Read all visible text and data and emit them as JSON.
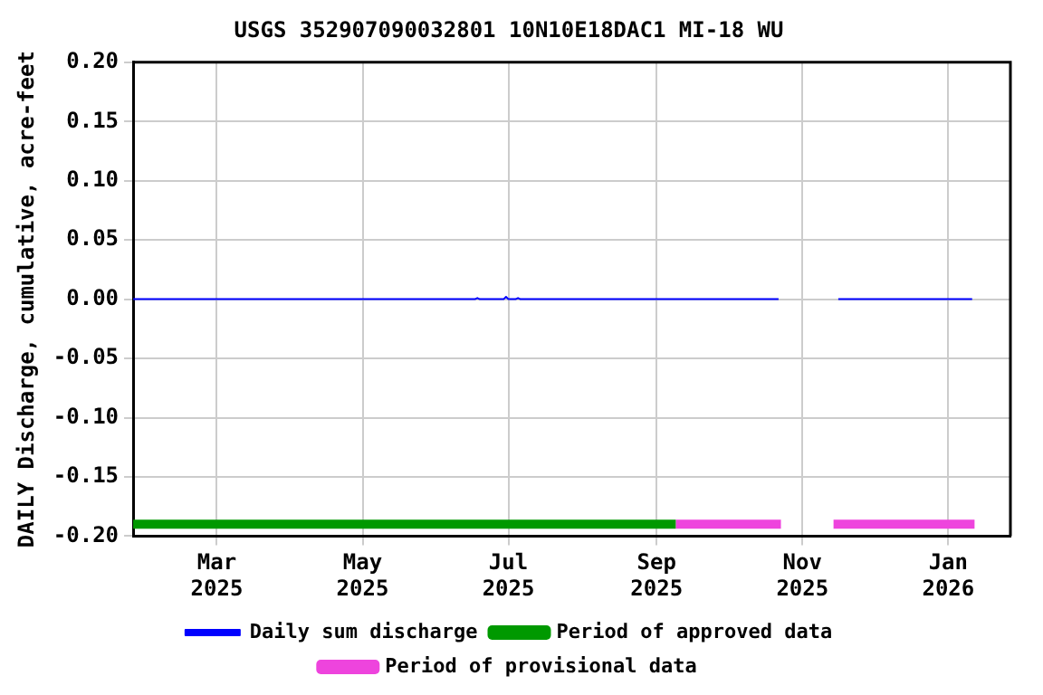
{
  "chart_data": {
    "type": "line",
    "title": "USGS 352907090032801 10N10E18DAC1 MI-18 WU",
    "ylabel": "DAILY Discharge, cumulative, acre-feet",
    "x": [
      "2025-01-25",
      "2025-06-17",
      "2025-06-18",
      "2025-06-19",
      "2025-06-29",
      "2025-06-30",
      "2025-07-01",
      "2025-07-04",
      "2025-07-05",
      "2025-07-06",
      "2025-10-22",
      "2025-11-01",
      "2025-11-16",
      "2026-01-11"
    ],
    "series": [
      {
        "name": "Daily sum discharge",
        "color": "#0000ff",
        "values": [
          0,
          0,
          0.001,
          0,
          0,
          0.002,
          0,
          0,
          0.001,
          0,
          0,
          null,
          0,
          0
        ]
      },
      {
        "name": "Period of approved data",
        "color": "#009900",
        "x": [
          "2025-01-25",
          "2025-09-09"
        ],
        "values": [
          -0.19,
          -0.19
        ]
      },
      {
        "name": "Period of provisional data",
        "color": "#ee44dd",
        "x": [
          "2025-09-09",
          "2025-10-23",
          "2025-11-01",
          "2025-11-14",
          "2026-01-12"
        ],
        "values": [
          -0.19,
          -0.19,
          null,
          -0.19,
          -0.19
        ]
      }
    ],
    "xlim": [
      "2025-01-25",
      "2026-01-27"
    ],
    "xticks": [
      {
        "value": "2025-03-01",
        "label": "Mar\n2025"
      },
      {
        "value": "2025-05-01",
        "label": "May\n2025"
      },
      {
        "value": "2025-07-01",
        "label": "Jul\n2025"
      },
      {
        "value": "2025-09-01",
        "label": "Sep\n2025"
      },
      {
        "value": "2025-11-01",
        "label": "Nov\n2025"
      },
      {
        "value": "2026-01-01",
        "label": "Jan\n2026"
      }
    ],
    "ylim": [
      -0.2,
      0.2
    ],
    "yticks": [
      {
        "value": -0.2,
        "label": "-0.20"
      },
      {
        "value": -0.15,
        "label": "-0.15"
      },
      {
        "value": -0.1,
        "label": "-0.10"
      },
      {
        "value": -0.05,
        "label": "-0.05"
      },
      {
        "value": 0,
        "label": "0.00"
      },
      {
        "value": 0.05,
        "label": "0.05"
      },
      {
        "value": 0.1,
        "label": "0.10"
      },
      {
        "value": 0.15,
        "label": "0.15"
      },
      {
        "value": 0.2,
        "label": "0.20"
      }
    ],
    "grid": true,
    "legend": "bottom",
    "marker": "none",
    "line_style": "solid"
  }
}
